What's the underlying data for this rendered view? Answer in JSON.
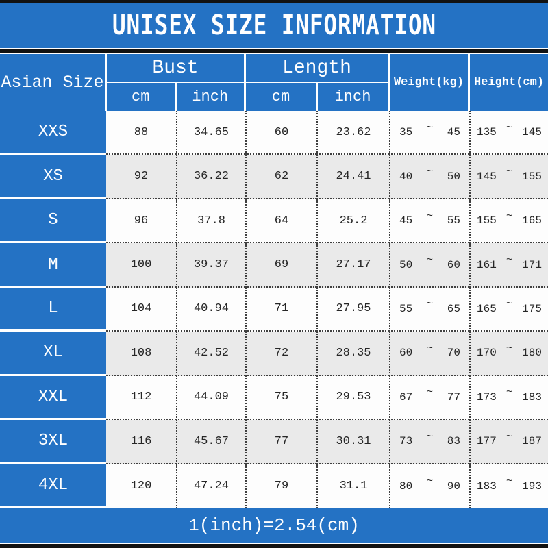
{
  "title": "UNISEX SIZE INFORMATION",
  "footer_note": "1(inch)=2.54(cm)",
  "tilde": "~",
  "colors": {
    "blue": "#2472c4",
    "band": "#121212",
    "row-alt": "#eaeaea",
    "dot": "#3f3f3f",
    "text": "#262626"
  },
  "header": {
    "asian_size": "Asian Size",
    "bust": "Bust",
    "length": "Length",
    "cm": "cm",
    "inch": "inch",
    "weight": "Weight(kg)",
    "height": "Height(cm)"
  },
  "rows": [
    {
      "size": "XXS",
      "bust_cm": "88",
      "bust_inch": "34.65",
      "length_cm": "60",
      "length_inch": "23.62",
      "weight_min": "35",
      "weight_max": "45",
      "height_min": "135",
      "height_max": "145"
    },
    {
      "size": "XS",
      "bust_cm": "92",
      "bust_inch": "36.22",
      "length_cm": "62",
      "length_inch": "24.41",
      "weight_min": "40",
      "weight_max": "50",
      "height_min": "145",
      "height_max": "155"
    },
    {
      "size": "S",
      "bust_cm": "96",
      "bust_inch": "37.8",
      "length_cm": "64",
      "length_inch": "25.2",
      "weight_min": "45",
      "weight_max": "55",
      "height_min": "155",
      "height_max": "165"
    },
    {
      "size": "M",
      "bust_cm": "100",
      "bust_inch": "39.37",
      "length_cm": "69",
      "length_inch": "27.17",
      "weight_min": "50",
      "weight_max": "60",
      "height_min": "161",
      "height_max": "171"
    },
    {
      "size": "L",
      "bust_cm": "104",
      "bust_inch": "40.94",
      "length_cm": "71",
      "length_inch": "27.95",
      "weight_min": "55",
      "weight_max": "65",
      "height_min": "165",
      "height_max": "175"
    },
    {
      "size": "XL",
      "bust_cm": "108",
      "bust_inch": "42.52",
      "length_cm": "72",
      "length_inch": "28.35",
      "weight_min": "60",
      "weight_max": "70",
      "height_min": "170",
      "height_max": "180"
    },
    {
      "size": "XXL",
      "bust_cm": "112",
      "bust_inch": "44.09",
      "length_cm": "75",
      "length_inch": "29.53",
      "weight_min": "67",
      "weight_max": "77",
      "height_min": "173",
      "height_max": "183"
    },
    {
      "size": "3XL",
      "bust_cm": "116",
      "bust_inch": "45.67",
      "length_cm": "77",
      "length_inch": "30.31",
      "weight_min": "73",
      "weight_max": "83",
      "height_min": "177",
      "height_max": "187"
    },
    {
      "size": "4XL",
      "bust_cm": "120",
      "bust_inch": "47.24",
      "length_cm": "79",
      "length_inch": "31.1",
      "weight_min": "80",
      "weight_max": "90",
      "height_min": "183",
      "height_max": "193"
    }
  ]
}
